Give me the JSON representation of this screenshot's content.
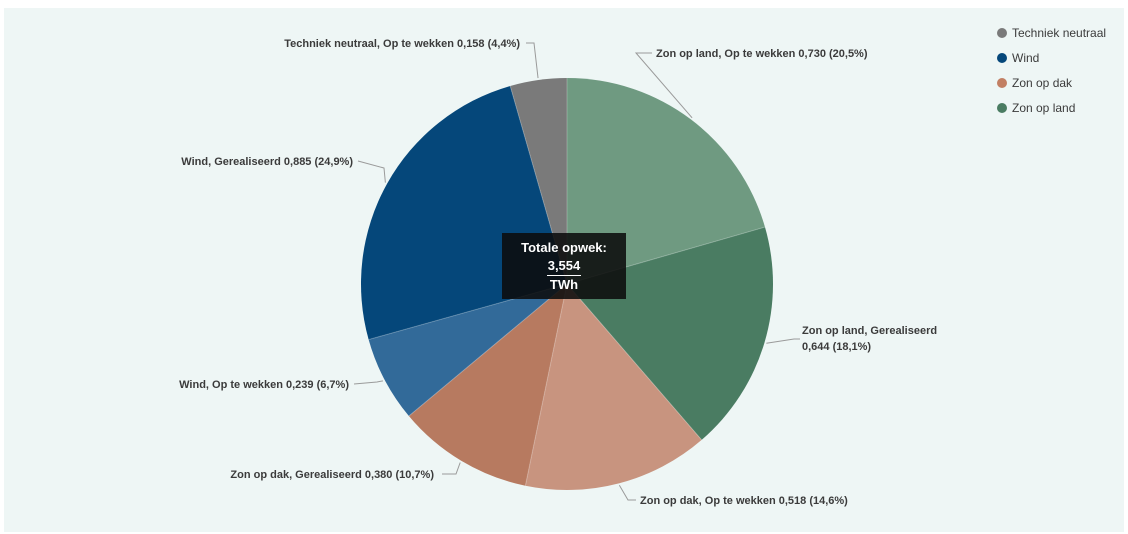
{
  "chart_data": {
    "type": "pie",
    "title": "",
    "total": {
      "label": "Totale opwek:",
      "value": "3,554",
      "unit": "TWh"
    },
    "slices": [
      {
        "label": "Zon op land, Op te wekken 0,730 (20,5%)",
        "lines": [
          "Zon op land, Op te wekken 0,730 (20,5%)"
        ],
        "group": "Zon op land",
        "status": "Op te wekken",
        "value": 0.73,
        "percent": 20.5,
        "color": "#6f9a81"
      },
      {
        "label": "Zon op land, Gerealiseerd 0,644 (18,1%)",
        "lines": [
          "Zon op land, Gerealiseerd",
          "0,644 (18,1%)"
        ],
        "group": "Zon op land",
        "status": "Gerealiseerd",
        "value": 0.644,
        "percent": 18.1,
        "color": "#4a7c62"
      },
      {
        "label": "Zon op dak, Op te wekken 0,518 (14,6%)",
        "lines": [
          "Zon op dak, Op te wekken 0,518 (14,6%)"
        ],
        "group": "Zon op dak",
        "status": "Op te wekken",
        "value": 0.518,
        "percent": 14.6,
        "color": "#c8947f"
      },
      {
        "label": "Zon op dak, Gerealiseerd 0,380 (10,7%)",
        "lines": [
          "Zon op dak, Gerealiseerd 0,380 (10,7%)"
        ],
        "group": "Zon op dak",
        "status": "Gerealiseerd",
        "value": 0.38,
        "percent": 10.7,
        "color": "#b77a60"
      },
      {
        "label": "Wind, Op te wekken 0,239 (6,7%)",
        "lines": [
          "Wind, Op te wekken 0,239 (6,7%)"
        ],
        "group": "Wind",
        "status": "Op te wekken",
        "value": 0.239,
        "percent": 6.7,
        "color": "#326a99"
      },
      {
        "label": "Wind, Gerealiseerd 0,885 (24,9%)",
        "lines": [
          "Wind, Gerealiseerd 0,885 (24,9%)"
        ],
        "group": "Wind",
        "status": "Gerealiseerd",
        "value": 0.885,
        "percent": 24.9,
        "color": "#05477a"
      },
      {
        "label": "Techniek neutraal, Op te wekken 0,158 (4,4%)",
        "lines": [
          "Techniek neutraal, Op te wekken 0,158 (4,4%)"
        ],
        "group": "Techniek neutraal",
        "status": "Op te wekken",
        "value": 0.158,
        "percent": 4.4,
        "color": "#7a7a7a"
      }
    ],
    "legend": {
      "placement": "top-right",
      "items": [
        {
          "label": "Techniek neutraal",
          "color": "#7a7a7a"
        },
        {
          "label": "Wind",
          "color": "#05477a"
        },
        {
          "label": "Zon op dak",
          "color": "#c27f63"
        },
        {
          "label": "Zon op land",
          "color": "#4a7c62"
        }
      ]
    }
  }
}
